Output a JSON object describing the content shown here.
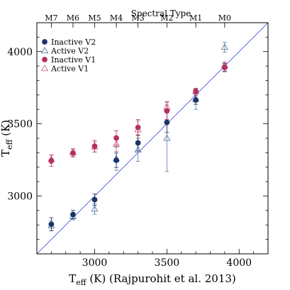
{
  "chart_data": {
    "type": "scatter",
    "xlabel": "T_eff (K) (Rajpurohit et al. 2013)",
    "ylabel": "T_eff (K)",
    "xlim": [
      2600,
      4200
    ],
    "ylim": [
      2600,
      4200
    ],
    "x_ticks": [
      3000,
      3500,
      4000
    ],
    "y_ticks": [
      3000,
      3500,
      4000
    ],
    "top_axis": {
      "title": "Spectral Type",
      "ticks": [
        {
          "label": "M7",
          "x": 2700
        },
        {
          "label": "M6",
          "x": 2850
        },
        {
          "label": "M5",
          "x": 3000
        },
        {
          "label": "M4",
          "x": 3150
        },
        {
          "label": "M3",
          "x": 3300
        },
        {
          "label": "M2",
          "x": 3500
        },
        {
          "label": "M1",
          "x": 3700
        },
        {
          "label": "M0",
          "x": 3900
        }
      ]
    },
    "reference_line": {
      "from": [
        2600,
        2600
      ],
      "to": [
        4200,
        4200
      ],
      "color": "#4a5ad8"
    },
    "legend_position": "top-left",
    "series": [
      {
        "name": "Inactive V2",
        "marker": "circle-filled",
        "color": "#1c3466",
        "points": [
          {
            "x": 2700,
            "y": 2805,
            "err": 45
          },
          {
            "x": 2850,
            "y": 2872,
            "err": 30
          },
          {
            "x": 3000,
            "y": 2975,
            "err": 40
          },
          {
            "x": 3150,
            "y": 3248,
            "err": 50
          },
          {
            "x": 3300,
            "y": 3368,
            "err": 55
          },
          {
            "x": 3500,
            "y": 3510,
            "err": 70
          },
          {
            "x": 3700,
            "y": 3665,
            "err": 30
          },
          {
            "x": 3900,
            "y": 3890,
            "err": 25
          }
        ]
      },
      {
        "name": "Active V2",
        "marker": "triangle-open",
        "color": "#5b7da6",
        "points": [
          {
            "x": 2700,
            "y": 2795,
            "err": 35
          },
          {
            "x": 2850,
            "y": 2860,
            "err": 25
          },
          {
            "x": 3000,
            "y": 2910,
            "err": 35
          },
          {
            "x": 3150,
            "y": 3258,
            "err": 80
          },
          {
            "x": 3300,
            "y": 3320,
            "err": 80
          },
          {
            "x": 3500,
            "y": 3400,
            "err": 230
          },
          {
            "x": 3700,
            "y": 3670,
            "err": 70
          },
          {
            "x": 3900,
            "y": 4030,
            "err": 35
          }
        ]
      },
      {
        "name": "Inactive V1",
        "marker": "circle-filled",
        "color": "#b5305f",
        "points": [
          {
            "x": 2700,
            "y": 3245,
            "err": 40
          },
          {
            "x": 2850,
            "y": 3298,
            "err": 25
          },
          {
            "x": 3000,
            "y": 3345,
            "err": 40
          },
          {
            "x": 3150,
            "y": 3402,
            "err": 50
          },
          {
            "x": 3300,
            "y": 3475,
            "err": 55
          },
          {
            "x": 3500,
            "y": 3590,
            "err": 60
          },
          {
            "x": 3700,
            "y": 3725,
            "err": 20
          },
          {
            "x": 3900,
            "y": 3890,
            "err": 30
          }
        ]
      },
      {
        "name": "Active V1",
        "marker": "triangle-open",
        "color": "#d06a91",
        "points": [
          {
            "x": 2700,
            "y": 3255,
            "err": 30
          },
          {
            "x": 2850,
            "y": 3300,
            "err": 30
          },
          {
            "x": 3000,
            "y": 3340,
            "err": 35
          },
          {
            "x": 3150,
            "y": 3360,
            "err": 50
          },
          {
            "x": 3300,
            "y": 3460,
            "err": 60
          },
          {
            "x": 3500,
            "y": 3615,
            "err": 40
          },
          {
            "x": 3700,
            "y": 3725,
            "err": 20
          },
          {
            "x": 3900,
            "y": 3905,
            "err": 25
          }
        ]
      }
    ]
  }
}
